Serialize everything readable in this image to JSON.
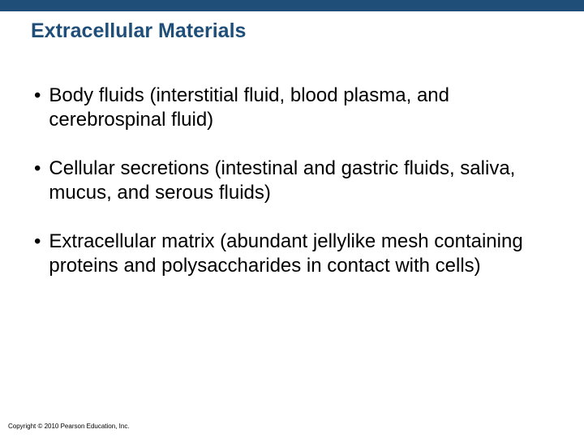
{
  "slide": {
    "title": "Extracellular Materials",
    "title_color": "#1f4e79",
    "topbar_color": "#1f4e79",
    "body_color": "#000000",
    "bullets": [
      "Body fluids (interstitial fluid, blood plasma, and cerebrospinal fluid)",
      "Cellular secretions (intestinal and gastric fluids, saliva, mucus, and serous fluids)",
      "Extracellular matrix (abundant jellylike mesh containing proteins and polysaccharides in contact with cells)"
    ],
    "footer": "Copyright © 2010 Pearson Education, Inc."
  }
}
